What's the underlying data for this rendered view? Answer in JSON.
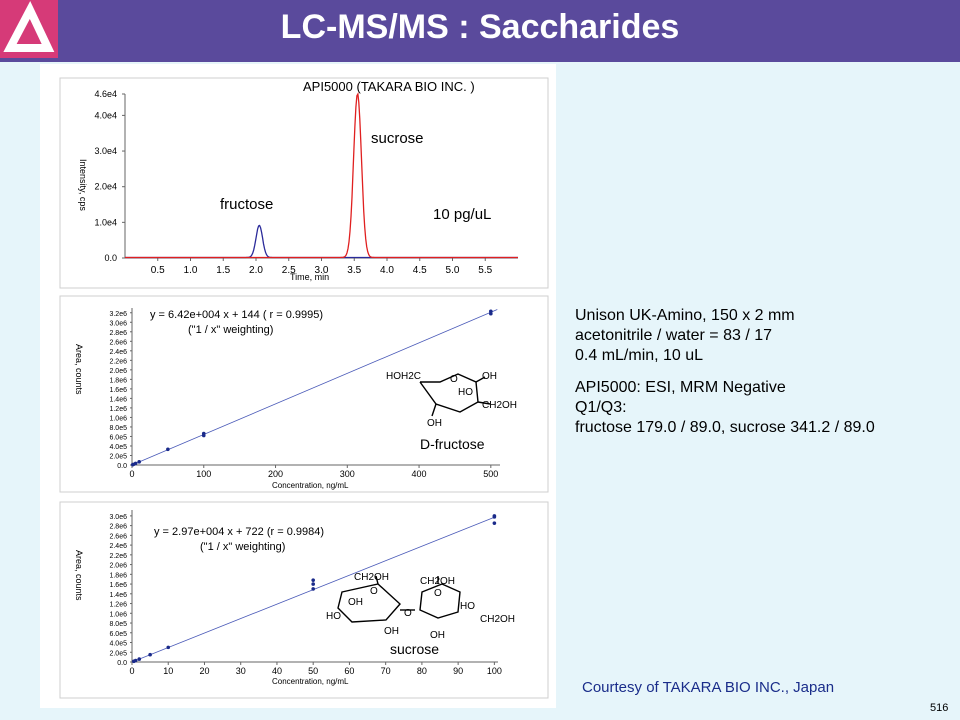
{
  "header": {
    "title": "LC-MS/MS : Saccharides"
  },
  "colors": {
    "header_bg": "#5a4a9c",
    "logo": "#d63a78",
    "sucrose_trace": "#e02020",
    "fructose_trace": "#2a2a9a",
    "fit_line": "#4a5ab8",
    "credit": "#1a2d8a"
  },
  "chart_data": [
    {
      "type": "line",
      "title": "API5000 (TAKARA BIO INC. )",
      "xlabel": "Time, min",
      "ylabel": "Intensity, cps",
      "xlim": [
        0,
        6.0
      ],
      "ylim": [
        0,
        46000
      ],
      "x_ticks": [
        "0.5",
        "1.0",
        "1.5",
        "2.0",
        "2.5",
        "3.0",
        "3.5",
        "4.0",
        "4.5",
        "5.0",
        "5.5"
      ],
      "y_ticks": [
        "0.0",
        "1.0e4",
        "2.0e4",
        "3.0e4",
        "4.0e4",
        "4.6e4"
      ],
      "series": [
        {
          "name": "sucrose",
          "peak_x": 3.55,
          "peak_y": 46000,
          "width": 0.06,
          "color": "#e02020"
        },
        {
          "name": "fructose",
          "peak_x": 2.05,
          "peak_y": 9000,
          "width": 0.05,
          "color": "#2a2a9a"
        }
      ],
      "annotations": [
        "sucrose",
        "fructose",
        "10 pg/uL"
      ]
    },
    {
      "type": "scatter",
      "xlabel": "Concentration, ng/mL",
      "ylabel": "Area, counts",
      "xlim": [
        0,
        510
      ],
      "ylim": [
        0,
        3300000
      ],
      "x_ticks": [
        "0",
        "100",
        "200",
        "300",
        "400",
        "500"
      ],
      "y_ticks": [
        "0.0",
        "2.0e5",
        "4.0e5",
        "6.0e5",
        "8.0e5",
        "1.0e6",
        "1.2e6",
        "1.4e6",
        "1.6e6",
        "1.8e6",
        "2.0e6",
        "2.2e6",
        "2.4e6",
        "2.6e6",
        "2.8e6",
        "3.0e6",
        "3.2e6"
      ],
      "equation": "y = 6.42e+004 x + 144 ( r = 0.9995)",
      "weighting": "(\"1 / x\" weighting)",
      "compound_label": "D-fructose",
      "fit": {
        "slope": 6420,
        "intercept": 144
      },
      "points": [
        [
          1,
          7000
        ],
        [
          2,
          13000
        ],
        [
          5,
          33000
        ],
        [
          10,
          66000
        ],
        [
          50,
          330000
        ],
        [
          100,
          620000
        ],
        [
          100,
          660000
        ],
        [
          500,
          3180000
        ],
        [
          500,
          3230000
        ]
      ],
      "structure": {
        "hoh2c": "HOH2C",
        "o": "O",
        "oh": "OH",
        "ho": "HO",
        "ch2oh": "CH2OH"
      }
    },
    {
      "type": "scatter",
      "xlabel": "Concentration, ng/mL",
      "ylabel": "Area, counts",
      "xlim": [
        0,
        101
      ],
      "ylim": [
        0,
        3100000
      ],
      "x_ticks": [
        "0",
        "10",
        "20",
        "30",
        "40",
        "50",
        "60",
        "70",
        "80",
        "90",
        "100"
      ],
      "y_ticks": [
        "0.0",
        "2.0e5",
        "4.0e5",
        "6.0e5",
        "8.0e5",
        "1.0e6",
        "1.2e6",
        "1.4e6",
        "1.6e6",
        "1.8e6",
        "2.0e6",
        "2.2e6",
        "2.4e6",
        "2.6e6",
        "2.8e6",
        "3.0e6"
      ],
      "equation": "y = 2.97e+004 x + 722 (r = 0.9984)",
      "weighting": "(\"1 / x\" weighting)",
      "compound_label": "sucrose",
      "fit": {
        "slope": 29700,
        "intercept": 722
      },
      "points": [
        [
          0.5,
          15000
        ],
        [
          1,
          30000
        ],
        [
          2,
          60000
        ],
        [
          5,
          150000
        ],
        [
          10,
          300000
        ],
        [
          50,
          1500000
        ],
        [
          50,
          1600000
        ],
        [
          50,
          1680000
        ],
        [
          100,
          2850000
        ],
        [
          100,
          2980000
        ],
        [
          100,
          3000000
        ]
      ],
      "structure": {
        "ch2oh": "CH2OH",
        "o": "O",
        "oh": "OH",
        "ho": "HO"
      }
    }
  ],
  "info": {
    "lines1": [
      "Unison UK-Amino, 150 x 2 mm",
      "acetonitrile / water = 83 / 17",
      "0.4 mL/min, 10 uL"
    ],
    "lines2": [
      "API5000: ESI, MRM Negative",
      "Q1/Q3:",
      "fructose 179.0 / 89.0, sucrose 341.2 / 89.0"
    ]
  },
  "credit": "Courtesy of TAKARA BIO INC., Japan",
  "page_number": "516"
}
